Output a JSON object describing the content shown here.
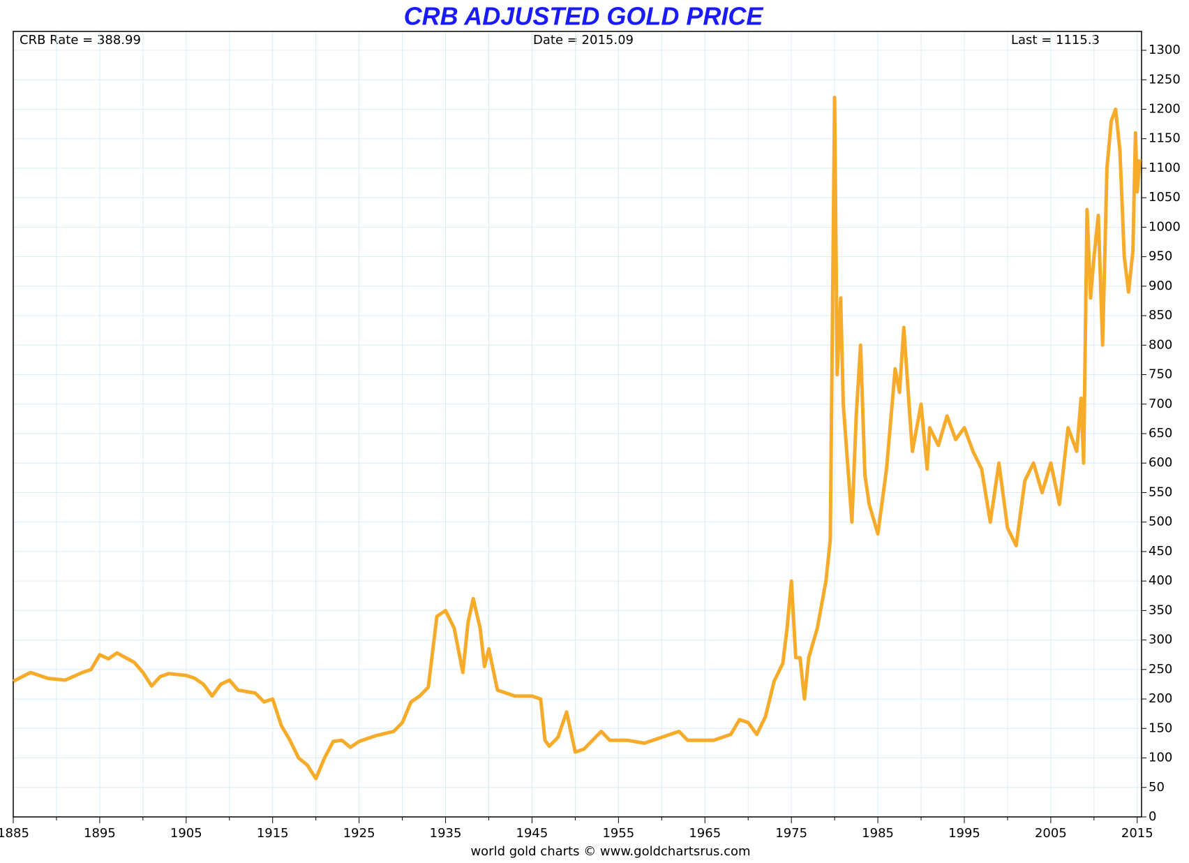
{
  "chart_data": {
    "type": "line",
    "title": "CRB ADJUSTED GOLD PRICE",
    "annotations": [
      "CRB Rate = 388.99",
      "Date = 2015.09",
      "Last = 1115.3"
    ],
    "footer": "world gold charts © www.goldchartsrus.com",
    "color": "#f7ab2a",
    "grid": true,
    "xlim": [
      1885,
      2015.5
    ],
    "ylim": [
      0,
      1332
    ],
    "xticks": [
      1885,
      1895,
      1905,
      1915,
      1925,
      1935,
      1945,
      1955,
      1965,
      1975,
      1985,
      1995,
      2005,
      2015
    ],
    "xminorticks": [
      1890,
      1900,
      1910,
      1920,
      1930,
      1940,
      1950,
      1960,
      1970,
      1980,
      1990,
      2000,
      2010
    ],
    "yticks": [
      0,
      50,
      100,
      150,
      200,
      250,
      300,
      350,
      400,
      450,
      500,
      550,
      600,
      650,
      700,
      750,
      800,
      850,
      900,
      950,
      1000,
      1050,
      1100,
      1150,
      1200,
      1250,
      1300
    ],
    "x": [
      1885,
      1887,
      1889,
      1891,
      1893,
      1894,
      1895,
      1896,
      1897,
      1898,
      1899,
      1900,
      1901,
      1902,
      1903,
      1905,
      1906,
      1907,
      1908,
      1909,
      1910,
      1911,
      1913,
      1914,
      1915,
      1916,
      1917,
      1918,
      1919,
      1920,
      1921,
      1922,
      1923,
      1924,
      1925,
      1927,
      1929,
      1930,
      1931,
      1932,
      1933,
      1934,
      1935,
      1936,
      1937,
      1937.6,
      1938.2,
      1939,
      1939.5,
      1940,
      1941,
      1943,
      1945,
      1946,
      1946.5,
      1947,
      1948,
      1949,
      1950,
      1951,
      1952,
      1953,
      1954,
      1956,
      1958,
      1960,
      1962,
      1963,
      1966,
      1968,
      1969,
      1970,
      1971,
      1972,
      1973,
      1974,
      1974.5,
      1975,
      1975.5,
      1976,
      1976.5,
      1977,
      1978,
      1979,
      1979.5,
      1980,
      1980.3,
      1980.7,
      1981,
      1981.5,
      1982,
      1982.5,
      1983,
      1983.5,
      1984,
      1985,
      1986,
      1987,
      1987.5,
      1988,
      1988.7,
      1989,
      1990,
      1990.7,
      1991,
      1992,
      1993,
      1994,
      1995,
      1996,
      1997,
      1998,
      1999,
      2000,
      2001,
      2002,
      2003,
      2004,
      2005,
      2006,
      2007,
      2008,
      2008.5,
      2008.8,
      2009.2,
      2009.6,
      2010,
      2010.5,
      2011,
      2011.5,
      2012,
      2012.5,
      2013,
      2013.5,
      2014,
      2014.5,
      2014.8,
      2015,
      2015.3
    ],
    "series": [
      {
        "name": "CRB adjusted gold",
        "color": "#f7ab2a",
        "values": [
          230,
          245,
          235,
          232,
          245,
          250,
          275,
          268,
          278,
          270,
          262,
          245,
          222,
          238,
          243,
          240,
          235,
          225,
          205,
          225,
          232,
          215,
          210,
          195,
          200,
          155,
          130,
          100,
          88,
          65,
          100,
          128,
          130,
          118,
          128,
          138,
          145,
          160,
          195,
          205,
          220,
          340,
          350,
          320,
          245,
          330,
          370,
          320,
          255,
          285,
          215,
          205,
          205,
          200,
          130,
          120,
          135,
          178,
          110,
          115,
          130,
          145,
          130,
          130,
          125,
          135,
          145,
          130,
          130,
          140,
          165,
          160,
          140,
          170,
          230,
          260,
          320,
          400,
          270,
          270,
          200,
          270,
          320,
          400,
          470,
          1220,
          750,
          880,
          700,
          600,
          500,
          680,
          800,
          580,
          530,
          480,
          590,
          760,
          720,
          830,
          680,
          620,
          700,
          590,
          660,
          630,
          680,
          640,
          660,
          620,
          590,
          500,
          600,
          490,
          460,
          570,
          600,
          550,
          600,
          530,
          660,
          620,
          710,
          600,
          1030,
          880,
          950,
          1020,
          800,
          1100,
          1180,
          1200,
          1130,
          950,
          890,
          960,
          1160,
          1060,
          1115
        ]
      }
    ]
  }
}
